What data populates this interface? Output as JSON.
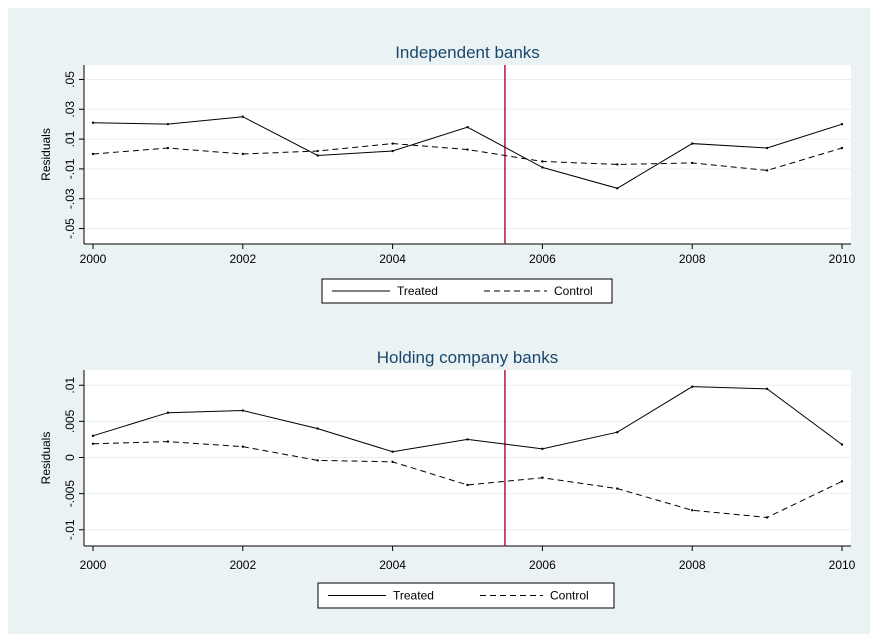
{
  "colors": {
    "outer_background": "#eaf2f3",
    "plot_background": "#ffffff",
    "gridline": "#e8eef0",
    "series_line": "#000000",
    "reference_line": "#b2183c",
    "title_color": "#1a476f"
  },
  "chart_data": [
    {
      "type": "line",
      "title": "Independent banks",
      "xlabel": "",
      "ylabel": "Residuals",
      "x": [
        2000,
        2001,
        2002,
        2003,
        2004,
        2005,
        2006,
        2007,
        2008,
        2009,
        2010
      ],
      "xlim": [
        2000,
        2010
      ],
      "ylim": [
        -0.055,
        0.055
      ],
      "x_ticks": [
        2000,
        2002,
        2004,
        2006,
        2008,
        2010
      ],
      "x_tick_labels": [
        "2000",
        "2002",
        "2004",
        "2006",
        "2008",
        "2010"
      ],
      "y_ticks": [
        -0.05,
        -0.03,
        -0.01,
        0.01,
        0.03,
        0.05
      ],
      "y_tick_labels": [
        "-.05",
        "-.03",
        "-.01",
        ".01",
        ".03",
        ".05"
      ],
      "reference_x": 2005.5,
      "grid": true,
      "legend_position": "bottom",
      "series": [
        {
          "name": "Treated",
          "style": "solid",
          "values": [
            0.021,
            0.02,
            0.025,
            -0.001,
            0.002,
            0.018,
            -0.009,
            -0.023,
            0.007,
            0.004,
            0.02
          ]
        },
        {
          "name": "Control",
          "style": "dashed",
          "values": [
            0.0,
            0.004,
            0.0,
            0.002,
            0.007,
            0.003,
            -0.005,
            -0.007,
            -0.006,
            -0.011,
            0.004
          ]
        }
      ]
    },
    {
      "type": "line",
      "title": "Holding company banks",
      "xlabel": "",
      "ylabel": "Residuals",
      "x": [
        2000,
        2001,
        2002,
        2003,
        2004,
        2005,
        2006,
        2007,
        2008,
        2009,
        2010
      ],
      "xlim": [
        2000,
        2010
      ],
      "ylim": [
        -0.011,
        0.011
      ],
      "x_ticks": [
        2000,
        2002,
        2004,
        2006,
        2008,
        2010
      ],
      "x_tick_labels": [
        "2000",
        "2002",
        "2004",
        "2006",
        "2008",
        "2010"
      ],
      "y_ticks": [
        -0.01,
        -0.005,
        0,
        0.005,
        0.01
      ],
      "y_tick_labels": [
        "-.01",
        "-.005",
        "0",
        ".005",
        ".01"
      ],
      "reference_x": 2005.5,
      "grid": true,
      "legend_position": "bottom",
      "series": [
        {
          "name": "Treated",
          "style": "solid",
          "values": [
            0.003,
            0.0062,
            0.0065,
            0.004,
            0.0008,
            0.0025,
            0.0012,
            0.0035,
            0.0098,
            0.0095,
            0.0018
          ]
        },
        {
          "name": "Control",
          "style": "dashed",
          "values": [
            0.0019,
            0.0022,
            0.0015,
            -0.0004,
            -0.0006,
            -0.0038,
            -0.0028,
            -0.0043,
            -0.0073,
            -0.0083,
            -0.0033
          ]
        }
      ]
    }
  ]
}
